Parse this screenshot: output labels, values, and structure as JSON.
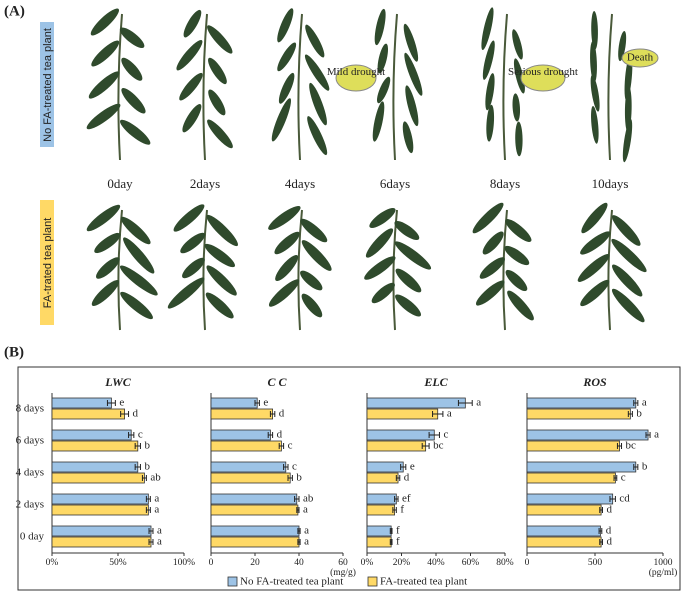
{
  "panel_a": {
    "label": "(A)",
    "row_labels": [
      "No FA-treated tea plant",
      "FA-trated tea plant"
    ],
    "days": [
      "0day",
      "2days",
      "4days",
      "6days",
      "8days",
      "10days"
    ],
    "annotations": [
      "Mild drought",
      "Serious drought",
      "Death"
    ]
  },
  "panel_b": {
    "label": "(B)"
  },
  "chart_data": [
    {
      "type": "bar",
      "title": "LWC",
      "categories": [
        "8 days",
        "6 days",
        "4 days",
        "2 days",
        "0 day"
      ],
      "xlim": [
        0,
        100
      ],
      "xticks": [
        {
          "value": 0,
          "label": "0%"
        },
        {
          "value": 50,
          "label": "50%"
        },
        {
          "value": 100,
          "label": "100%"
        }
      ],
      "series": [
        {
          "name": "No FA-treated tea plant",
          "color": "#9dc3e6",
          "values": [
            45,
            60,
            65,
            73,
            75
          ],
          "errors": [
            3,
            2,
            2,
            1.5,
            1.5
          ],
          "letters": [
            "e",
            "c",
            "b",
            "a",
            "a"
          ]
        },
        {
          "name": "FA-treated tea plant",
          "color": "#ffd966",
          "values": [
            55,
            65,
            70,
            73,
            75
          ],
          "errors": [
            3,
            2,
            1.5,
            1.5,
            1.5
          ],
          "letters": [
            "d",
            "b",
            "ab",
            "a",
            "a"
          ]
        }
      ]
    },
    {
      "type": "bar",
      "title": "C C",
      "xlabel": "(mg/g)",
      "categories": [
        "8 days",
        "6 days",
        "4 days",
        "2 days",
        "0 day"
      ],
      "xlim": [
        0,
        60
      ],
      "xticks": [
        0,
        20,
        40,
        60
      ],
      "series": [
        {
          "name": "No FA-treated tea plant",
          "color": "#9dc3e6",
          "values": [
            21,
            27,
            34,
            39,
            40
          ],
          "errors": [
            1,
            1,
            1,
            1,
            0.5
          ],
          "letters": [
            "e",
            "d",
            "c",
            "ab",
            "a"
          ]
        },
        {
          "name": "FA-treated tea plant",
          "color": "#ffd966",
          "values": [
            28,
            32,
            36,
            39.5,
            40
          ],
          "errors": [
            1,
            1,
            1,
            0.5,
            0.5
          ],
          "letters": [
            "d",
            "c",
            "b",
            "a",
            "a"
          ]
        }
      ]
    },
    {
      "type": "bar",
      "title": "ELC",
      "categories": [
        "8 days",
        "6 days",
        "4 days",
        "2 days",
        "0 day"
      ],
      "xlim": [
        0,
        80
      ],
      "xticks": [
        {
          "value": 0,
          "label": "0%"
        },
        {
          "value": 20,
          "label": "20%"
        },
        {
          "value": 40,
          "label": "40%"
        },
        {
          "value": 60,
          "label": "60%"
        },
        {
          "value": 80,
          "label": "80%"
        }
      ],
      "series": [
        {
          "name": "No FA-treated tea plant",
          "color": "#9dc3e6",
          "values": [
            57,
            39,
            21,
            17,
            14
          ],
          "errors": [
            4,
            3,
            1.5,
            1,
            0.5
          ],
          "letters": [
            "a",
            "c",
            "e",
            "ef",
            "f"
          ]
        },
        {
          "name": "FA-treated tea plant",
          "color": "#ffd966",
          "values": [
            41,
            34,
            18,
            16,
            14
          ],
          "errors": [
            3,
            2,
            1,
            1,
            0.5
          ],
          "letters": [
            "a",
            "bc",
            "d",
            "f",
            "f"
          ]
        }
      ]
    },
    {
      "type": "bar",
      "title": "ROS",
      "xlabel": "(pg/ml)",
      "categories": [
        "8 days",
        "6 days",
        "4 days",
        "2 days",
        "0 day"
      ],
      "xlim": [
        0,
        1000
      ],
      "xticks": [
        0,
        500,
        1000
      ],
      "series": [
        {
          "name": "No FA-treated tea plant",
          "color": "#9dc3e6",
          "values": [
            800,
            890,
            800,
            630,
            540
          ],
          "errors": [
            15,
            15,
            15,
            20,
            10
          ],
          "letters": [
            "a",
            "a",
            "b",
            "cd",
            "d"
          ]
        },
        {
          "name": "FA-treated tea plant",
          "color": "#ffd966",
          "values": [
            760,
            680,
            650,
            545,
            545
          ],
          "errors": [
            15,
            15,
            10,
            10,
            10
          ],
          "letters": [
            "b",
            "bc",
            "c",
            "d",
            "d"
          ]
        }
      ]
    }
  ]
}
